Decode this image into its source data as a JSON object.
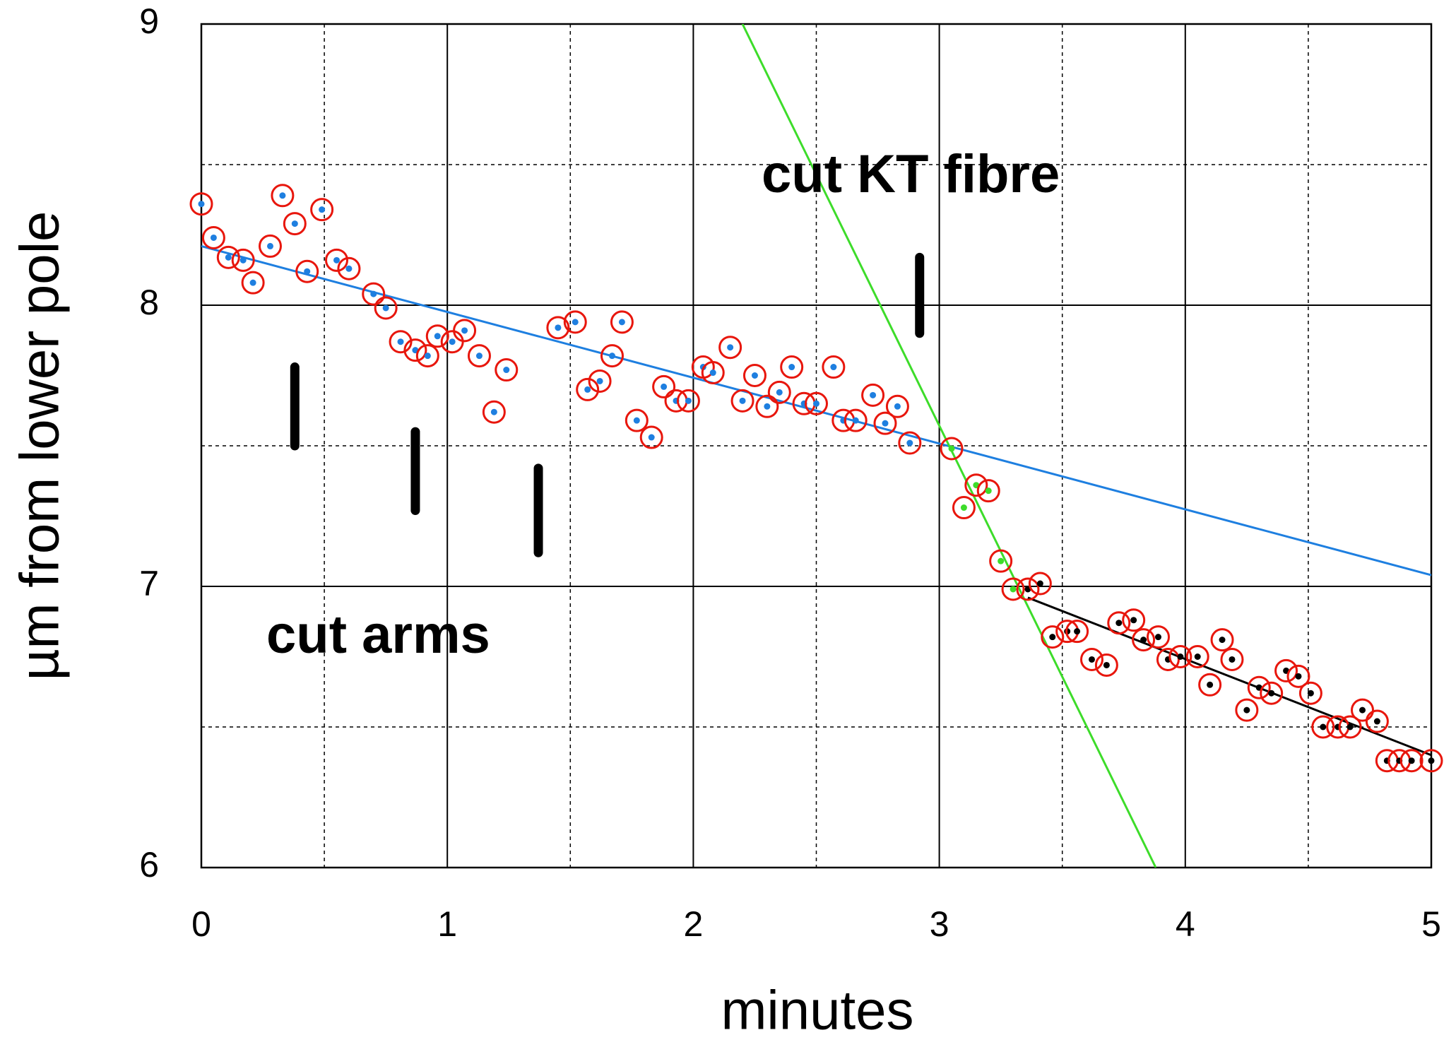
{
  "chart_data": {
    "type": "scatter",
    "xlabel": "minutes",
    "ylabel": "µm from lower pole",
    "xlim": [
      0,
      5
    ],
    "ylim": [
      6,
      9
    ],
    "xticks": [
      0,
      1,
      2,
      3,
      4,
      5
    ],
    "yticks": [
      6,
      7,
      8,
      9
    ],
    "minor_xticks": [
      0.5,
      1.5,
      2.5,
      3.5,
      4.5
    ],
    "minor_yticks": [
      6.5,
      7.5,
      8.5
    ],
    "grid": true,
    "ring_color": "#e8160c",
    "annotations": [
      "cut arms",
      "cut KT fibre"
    ],
    "cut_marks": [
      {
        "x": 0.38,
        "y": [
          7.5,
          7.78
        ]
      },
      {
        "x": 0.87,
        "y": [
          7.27,
          7.55
        ]
      },
      {
        "x": 1.37,
        "y": [
          7.12,
          7.42
        ]
      },
      {
        "x": 2.92,
        "y": [
          7.9,
          8.17
        ]
      }
    ],
    "series": [
      {
        "color": "#1e7fe0",
        "x": [
          0,
          0.05,
          0.11,
          0.17,
          0.21,
          0.28,
          0.33,
          0.38,
          0.43,
          0.49,
          0.55,
          0.6,
          0.7,
          0.75,
          0.81,
          0.87,
          0.92,
          0.96,
          1.02,
          1.07,
          1.13,
          1.19,
          1.24,
          1.45,
          1.52,
          1.57,
          1.62,
          1.67,
          1.71,
          1.77,
          1.83,
          1.88,
          1.93,
          1.98,
          2.04,
          2.08,
          2.15,
          2.2,
          2.25,
          2.3,
          2.35,
          2.4,
          2.45,
          2.5,
          2.57,
          2.61,
          2.66,
          2.73,
          2.78,
          2.83,
          2.88
        ],
        "values": [
          8.36,
          8.24,
          8.17,
          8.16,
          8.08,
          8.21,
          8.39,
          8.29,
          8.12,
          8.34,
          8.16,
          8.13,
          8.04,
          7.99,
          7.87,
          7.84,
          7.82,
          7.89,
          7.87,
          7.91,
          7.82,
          7.62,
          7.77,
          7.92,
          7.94,
          7.7,
          7.73,
          7.82,
          7.94,
          7.59,
          7.53,
          7.71,
          7.66,
          7.66,
          7.78,
          7.76,
          7.85,
          7.66,
          7.75,
          7.64,
          7.69,
          7.78,
          7.65,
          7.65,
          7.78,
          7.59,
          7.59,
          7.68,
          7.58,
          7.64,
          7.51
        ]
      },
      {
        "color": "#3ddc2a",
        "x": [
          3.05,
          3.1,
          3.15,
          3.2,
          3.25,
          3.3
        ],
        "values": [
          7.49,
          7.28,
          7.36,
          7.34,
          7.09,
          6.99
        ]
      },
      {
        "color": "#000000",
        "x": [
          3.36,
          3.41,
          3.46,
          3.52,
          3.56,
          3.62,
          3.68,
          3.73,
          3.79,
          3.83,
          3.89,
          3.93,
          3.98,
          4.05,
          4.1,
          4.15,
          4.19,
          4.25,
          4.3,
          4.35,
          4.41,
          4.46,
          4.51,
          4.56,
          4.62,
          4.67,
          4.72,
          4.78,
          4.82,
          4.87,
          4.92,
          5
        ],
        "values": [
          6.99,
          7.01,
          6.82,
          6.84,
          6.84,
          6.74,
          6.72,
          6.87,
          6.88,
          6.81,
          6.82,
          6.74,
          6.75,
          6.75,
          6.65,
          6.81,
          6.74,
          6.56,
          6.64,
          6.62,
          6.7,
          6.68,
          6.62,
          6.5,
          6.5,
          6.5,
          6.56,
          6.52,
          6.38,
          6.38,
          6.38,
          6.38
        ]
      }
    ],
    "fits": [
      {
        "color": "#1e7fe0",
        "x": [
          0,
          5
        ],
        "y": [
          8.21,
          7.04
        ]
      },
      {
        "color": "#3ddc2a",
        "x": [
          2.2,
          3.88
        ],
        "y": [
          9,
          6
        ]
      },
      {
        "color": "#000000",
        "x": [
          3.36,
          5
        ],
        "y": [
          6.96,
          6.4
        ]
      }
    ]
  }
}
